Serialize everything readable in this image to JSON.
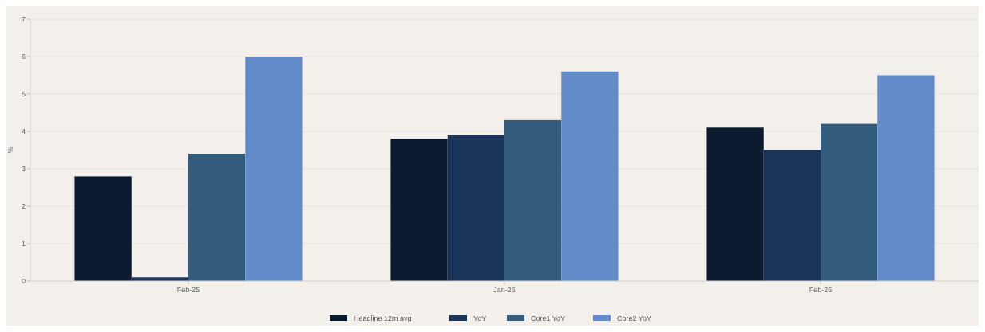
{
  "chart_data": {
    "type": "bar",
    "ylabel": "%",
    "categories": [
      "Feb-25",
      "Jan-26",
      "Feb-26"
    ],
    "series": [
      {
        "name": "Headline 12m avg",
        "color": "#0b1a2f",
        "values": [
          2.8,
          3.8,
          4.1
        ]
      },
      {
        "name": "YoY",
        "color": "#1b3459",
        "values": [
          0.1,
          3.9,
          3.5
        ]
      },
      {
        "name": "Core1 YoY",
        "color": "#345c7d",
        "values": [
          3.4,
          4.3,
          4.2
        ]
      },
      {
        "name": "Core2 YoY",
        "color": "#638bc9",
        "values": [
          6.0,
          5.6,
          5.5
        ]
      }
    ],
    "ylim": [
      0,
      7
    ],
    "yticks": [
      0,
      1,
      2,
      3,
      4,
      5,
      6,
      7
    ],
    "grid": "y",
    "legend": "bottom"
  }
}
